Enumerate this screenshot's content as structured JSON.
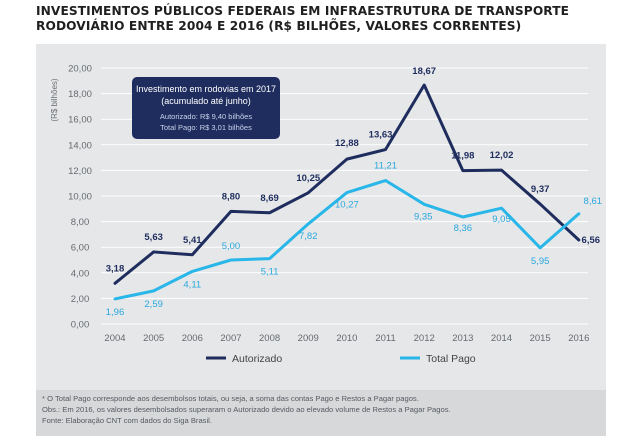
{
  "heading": {
    "line1": "INVESTIMENTOS PÚBLICOS FEDERAIS EM INFRAESTRUTURA DE TRANSPORTE",
    "line2": "RODOVIÁRIO ENTRE 2004 E 2016 (R$ BILHÕES, VALORES CORRENTES)"
  },
  "chart_data": {
    "type": "line",
    "title": "INVESTIMENTOS PÚBLICOS FEDERAIS EM INFRAESTRUTURA DE TRANSPORTE RODOVIÁRIO ENTRE 2004 E 2016 (R$ BILHÕES, VALORES CORRENTES)",
    "xlabel": "",
    "ylabel": "(R$ bilhões)",
    "x": [
      "2004",
      "2005",
      "2006",
      "2007",
      "2008",
      "2009",
      "2010",
      "2011",
      "2012",
      "2013",
      "2014",
      "2015",
      "2016"
    ],
    "ylim": [
      0,
      20
    ],
    "yticks": [
      "0,00",
      "2,00",
      "4,00",
      "6,00",
      "8,00",
      "10,00",
      "12,00",
      "14,00",
      "16,00",
      "18,00",
      "20,00"
    ],
    "grid": true,
    "legend_position": "bottom",
    "series": [
      {
        "name": "Autorizado",
        "color": "#1e2d5e",
        "values": [
          3.18,
          5.63,
          5.41,
          8.8,
          8.69,
          10.25,
          12.88,
          13.63,
          18.67,
          11.98,
          12.02,
          9.37,
          6.56
        ],
        "labels": [
          "3,18",
          "5,63",
          "5,41",
          "8,80",
          "8,69",
          "10,25",
          "12,88",
          "13,63",
          "18,67",
          "11,98",
          "12,02",
          "9,37",
          "6,56"
        ]
      },
      {
        "name": "Total Pago",
        "color": "#29b6e8",
        "values": [
          1.96,
          2.59,
          4.11,
          5.0,
          5.11,
          7.82,
          10.27,
          11.21,
          9.35,
          8.36,
          9.05,
          5.95,
          8.61
        ],
        "labels": [
          "1,96",
          "2,59",
          "4,11",
          "5,00",
          "5,11",
          "7,82",
          "10,27",
          "11,21",
          "9,35",
          "8,36",
          "9,05",
          "5,95",
          "8,61"
        ]
      }
    ],
    "annotation": {
      "title_line1": "Investimento em rodovias em 2017",
      "title_line2": "(acumulado até junho)",
      "line3": "Autorizado: R$ 9,40 bilhões",
      "line4": "Total Pago: R$ 3,01 bilhões"
    }
  },
  "footnotes": {
    "line1": "* O Total Pago corresponde aos desembolsos totais, ou seja, a soma das contas Pago e Restos a Pagar pagos.",
    "line2": "Obs.: Em 2016, os valores desembolsados superaram o Autorizado devido ao elevado volume de Restos a Pagar Pagos.",
    "line3": "Fonte: Elaboração CNT com dados do Siga Brasil."
  }
}
